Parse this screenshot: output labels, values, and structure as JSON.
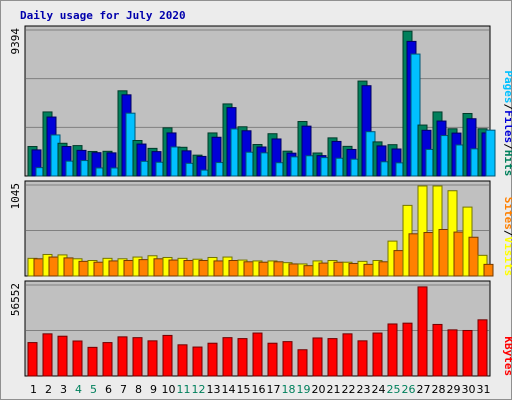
{
  "title": "Daily usage for July 2020",
  "colors": {
    "frame_bg": "#ececec",
    "plot_bg": "#c0c0c0",
    "title": "#0000ac",
    "hits": "#00805c",
    "files": "#0000d8",
    "pages": "#00c0ff",
    "visits": "#ffff00",
    "sites": "#ff8000",
    "kbytes": "#ff0000",
    "weekend_day": "#00805c",
    "weekday": "#000000"
  },
  "legend": {
    "top": [
      {
        "label": "Pages",
        "color": "#00c0ff"
      },
      {
        "label": "/",
        "color": "#000000"
      },
      {
        "label": "Files",
        "color": "#0000d8"
      },
      {
        "label": "/",
        "color": "#000000"
      },
      {
        "label": "Hits",
        "color": "#00805c"
      }
    ],
    "middle": [
      {
        "label": "Sites",
        "color": "#ff8000"
      },
      {
        "label": "/",
        "color": "#000000"
      },
      {
        "label": "Visits",
        "color": "#ffff00"
      }
    ],
    "bottom": [
      {
        "label": "KBytes",
        "color": "#ff0000"
      }
    ]
  },
  "chart_data": [
    {
      "type": "bar",
      "panel": "hits-files-pages",
      "ylabel": "9394",
      "ymax": 9394,
      "grid": true,
      "categories": [
        "1",
        "2",
        "3",
        "4",
        "5",
        "6",
        "7",
        "8",
        "9",
        "10",
        "11",
        "12",
        "13",
        "14",
        "15",
        "16",
        "17",
        "18",
        "19",
        "20",
        "21",
        "22",
        "23",
        "24",
        "25",
        "26",
        "27",
        "28",
        "29",
        "30",
        "31"
      ],
      "weekend_days": [
        "4",
        "5",
        "11",
        "12",
        "18",
        "19",
        "25",
        "26"
      ],
      "series": [
        {
          "name": "Hits",
          "values": [
            1910,
            4150,
            2120,
            1970,
            1590,
            1600,
            5520,
            2300,
            1790,
            3120,
            1860,
            1350,
            2790,
            4670,
            3190,
            2040,
            2740,
            1610,
            3530,
            1490,
            2470,
            1920,
            6150,
            2210,
            2030,
            9380,
            3300,
            4150,
            3060,
            4050,
            3060
          ]
        },
        {
          "name": "Files",
          "values": [
            1690,
            3820,
            1910,
            1660,
            1510,
            1500,
            5260,
            2070,
            1580,
            2790,
            1630,
            1270,
            2510,
            4430,
            2930,
            1880,
            2400,
            1480,
            3230,
            1320,
            2240,
            1720,
            5850,
            1950,
            1750,
            8720,
            2960,
            3560,
            2780,
            3710,
            2790
          ]
        },
        {
          "name": "Pages",
          "values": [
            540,
            2660,
            960,
            1000,
            520,
            520,
            4070,
            950,
            890,
            1880,
            820,
            380,
            870,
            3050,
            1540,
            1500,
            860,
            1240,
            1310,
            1190,
            1150,
            1090,
            2870,
            920,
            850,
            7900,
            1720,
            2620,
            2010,
            1760,
            2970
          ]
        }
      ]
    },
    {
      "type": "bar",
      "panel": "visits-sites",
      "ylabel": "1045",
      "ymax": 1045,
      "grid": true,
      "categories": [
        "1",
        "2",
        "3",
        "4",
        "5",
        "6",
        "7",
        "8",
        "9",
        "10",
        "11",
        "12",
        "13",
        "14",
        "15",
        "16",
        "17",
        "18",
        "19",
        "20",
        "21",
        "22",
        "23",
        "24",
        "25",
        "26",
        "27",
        "28",
        "29",
        "30",
        "31"
      ],
      "series": [
        {
          "name": "Visits",
          "values": [
            205,
            250,
            245,
            200,
            180,
            205,
            200,
            220,
            235,
            215,
            205,
            195,
            215,
            220,
            185,
            175,
            175,
            155,
            140,
            175,
            180,
            160,
            170,
            180,
            405,
            820,
            1045,
            1045,
            990,
            800,
            240
          ]
        },
        {
          "name": "Sites",
          "values": [
            200,
            220,
            210,
            170,
            160,
            175,
            180,
            190,
            200,
            185,
            180,
            180,
            175,
            180,
            165,
            160,
            165,
            140,
            120,
            150,
            160,
            145,
            135,
            165,
            295,
            490,
            505,
            540,
            510,
            450,
            135
          ]
        }
      ]
    },
    {
      "type": "bar",
      "panel": "kbytes",
      "ylabel": "56552",
      "ymax": 56552,
      "grid": true,
      "categories": [
        "1",
        "2",
        "3",
        "4",
        "5",
        "6",
        "7",
        "8",
        "9",
        "10",
        "11",
        "12",
        "13",
        "14",
        "15",
        "16",
        "17",
        "18",
        "19",
        "20",
        "21",
        "22",
        "23",
        "24",
        "25",
        "26",
        "27",
        "28",
        "29",
        "30",
        "31"
      ],
      "series": [
        {
          "name": "KBytes",
          "values": [
            21000,
            26500,
            25000,
            22000,
            18000,
            21000,
            24600,
            24100,
            22100,
            25500,
            19600,
            18200,
            20600,
            24100,
            23500,
            27000,
            20600,
            21600,
            16500,
            23900,
            23500,
            26500,
            22100,
            27000,
            32700,
            33200,
            56000,
            32400,
            29000,
            28600,
            35300
          ]
        }
      ]
    }
  ]
}
